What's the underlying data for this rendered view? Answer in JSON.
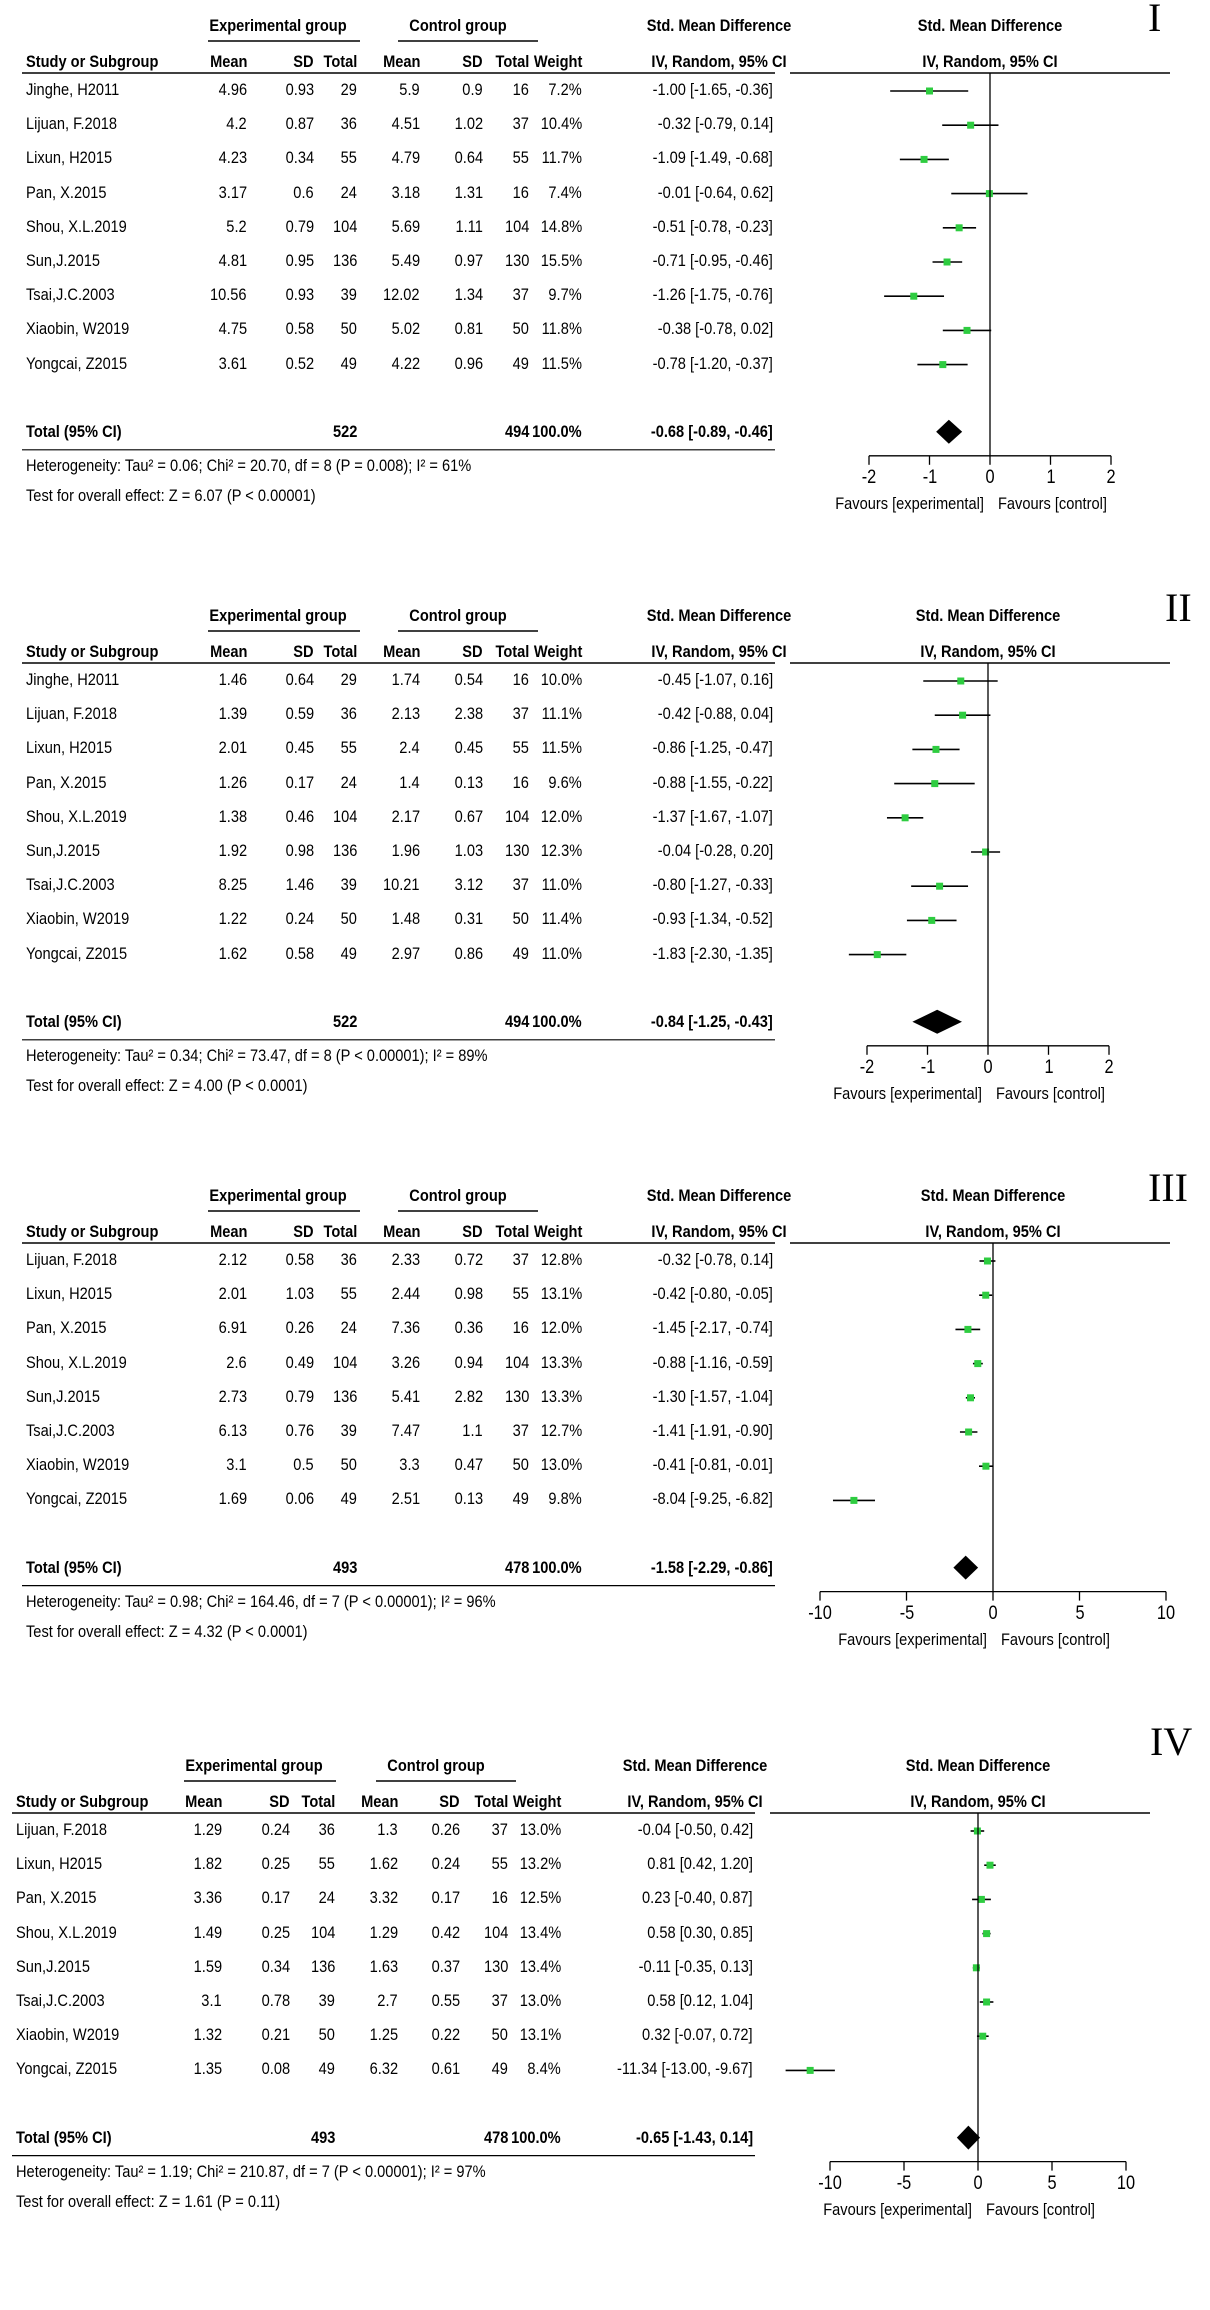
{
  "common": {
    "study_header": "Study or Subgroup",
    "exp_group": "Experimental group",
    "ctrl_group": "Control group",
    "mean": "Mean",
    "sd": "SD",
    "total": "Total",
    "weight": "Weight",
    "effect_title": "Std. Mean Difference",
    "effect_sub": "IV, Random, 95% CI",
    "total_label": "Total (95% CI)",
    "favours_left": "Favours [experimental]",
    "favours_right": "Favours [control]"
  },
  "chart_data": [
    {
      "type": "forest",
      "panel_label": "I",
      "x_ticks": [
        "-2",
        "-1",
        "0",
        "1",
        "2"
      ],
      "xlim": [
        -2,
        2
      ],
      "rows": [
        {
          "study": "Jinghe, H2011",
          "exp_mean": "4.96",
          "exp_sd": "0.93",
          "exp_total": "29",
          "ctrl_mean": "5.9",
          "ctrl_sd": "0.9",
          "ctrl_total": "16",
          "weight": "7.2%",
          "ci_text": "-1.00 [-1.65, -0.36]",
          "est": -1.0,
          "lo": -1.65,
          "hi": -0.36
        },
        {
          "study": "Lijuan, F.2018",
          "exp_mean": "4.2",
          "exp_sd": "0.87",
          "exp_total": "36",
          "ctrl_mean": "4.51",
          "ctrl_sd": "1.02",
          "ctrl_total": "37",
          "weight": "10.4%",
          "ci_text": "-0.32 [-0.79, 0.14]",
          "est": -0.32,
          "lo": -0.79,
          "hi": 0.14
        },
        {
          "study": "Lixun, H2015",
          "exp_mean": "4.23",
          "exp_sd": "0.34",
          "exp_total": "55",
          "ctrl_mean": "4.79",
          "ctrl_sd": "0.64",
          "ctrl_total": "55",
          "weight": "11.7%",
          "ci_text": "-1.09 [-1.49, -0.68]",
          "est": -1.09,
          "lo": -1.49,
          "hi": -0.68
        },
        {
          "study": "Pan, X.2015",
          "exp_mean": "3.17",
          "exp_sd": "0.6",
          "exp_total": "24",
          "ctrl_mean": "3.18",
          "ctrl_sd": "1.31",
          "ctrl_total": "16",
          "weight": "7.4%",
          "ci_text": "-0.01 [-0.64, 0.62]",
          "est": -0.01,
          "lo": -0.64,
          "hi": 0.62
        },
        {
          "study": "Shou, X.L.2019",
          "exp_mean": "5.2",
          "exp_sd": "0.79",
          "exp_total": "104",
          "ctrl_mean": "5.69",
          "ctrl_sd": "1.11",
          "ctrl_total": "104",
          "weight": "14.8%",
          "ci_text": "-0.51 [-0.78, -0.23]",
          "est": -0.51,
          "lo": -0.78,
          "hi": -0.23
        },
        {
          "study": "Sun,J.2015",
          "exp_mean": "4.81",
          "exp_sd": "0.95",
          "exp_total": "136",
          "ctrl_mean": "5.49",
          "ctrl_sd": "0.97",
          "ctrl_total": "130",
          "weight": "15.5%",
          "ci_text": "-0.71 [-0.95, -0.46]",
          "est": -0.71,
          "lo": -0.95,
          "hi": -0.46
        },
        {
          "study": "Tsai,J.C.2003",
          "exp_mean": "10.56",
          "exp_sd": "0.93",
          "exp_total": "39",
          "ctrl_mean": "12.02",
          "ctrl_sd": "1.34",
          "ctrl_total": "37",
          "weight": "9.7%",
          "ci_text": "-1.26 [-1.75, -0.76]",
          "est": -1.26,
          "lo": -1.75,
          "hi": -0.76
        },
        {
          "study": "Xiaobin, W2019",
          "exp_mean": "4.75",
          "exp_sd": "0.58",
          "exp_total": "50",
          "ctrl_mean": "5.02",
          "ctrl_sd": "0.81",
          "ctrl_total": "50",
          "weight": "11.8%",
          "ci_text": "-0.38 [-0.78, 0.02]",
          "est": -0.38,
          "lo": -0.78,
          "hi": 0.02
        },
        {
          "study": "Yongcai, Z2015",
          "exp_mean": "3.61",
          "exp_sd": "0.52",
          "exp_total": "49",
          "ctrl_mean": "4.22",
          "ctrl_sd": "0.96",
          "ctrl_total": "49",
          "weight": "11.5%",
          "ci_text": "-0.78 [-1.20, -0.37]",
          "est": -0.78,
          "lo": -1.2,
          "hi": -0.37
        }
      ],
      "total": {
        "exp_total": "522",
        "ctrl_total": "494",
        "weight": "100.0%",
        "ci_text": "-0.68 [-0.89, -0.46]",
        "est": -0.68,
        "lo": -0.89,
        "hi": -0.46
      },
      "heterogeneity": "Heterogeneity: Tau² = 0.06; Chi² = 20.70, df = 8 (P = 0.008); I² = 61%",
      "overall_effect": "Test for overall effect: Z = 6.07 (P < 0.00001)"
    },
    {
      "type": "forest",
      "panel_label": "II",
      "x_ticks": [
        "-2",
        "-1",
        "0",
        "1",
        "2"
      ],
      "xlim": [
        -2,
        2
      ],
      "rows": [
        {
          "study": "Jinghe, H2011",
          "exp_mean": "1.46",
          "exp_sd": "0.64",
          "exp_total": "29",
          "ctrl_mean": "1.74",
          "ctrl_sd": "0.54",
          "ctrl_total": "16",
          "weight": "10.0%",
          "ci_text": "-0.45 [-1.07, 0.16]",
          "est": -0.45,
          "lo": -1.07,
          "hi": 0.16
        },
        {
          "study": "Lijuan, F.2018",
          "exp_mean": "1.39",
          "exp_sd": "0.59",
          "exp_total": "36",
          "ctrl_mean": "2.13",
          "ctrl_sd": "2.38",
          "ctrl_total": "37",
          "weight": "11.1%",
          "ci_text": "-0.42 [-0.88, 0.04]",
          "est": -0.42,
          "lo": -0.88,
          "hi": 0.04
        },
        {
          "study": "Lixun, H2015",
          "exp_mean": "2.01",
          "exp_sd": "0.45",
          "exp_total": "55",
          "ctrl_mean": "2.4",
          "ctrl_sd": "0.45",
          "ctrl_total": "55",
          "weight": "11.5%",
          "ci_text": "-0.86 [-1.25, -0.47]",
          "est": -0.86,
          "lo": -1.25,
          "hi": -0.47
        },
        {
          "study": "Pan, X.2015",
          "exp_mean": "1.26",
          "exp_sd": "0.17",
          "exp_total": "24",
          "ctrl_mean": "1.4",
          "ctrl_sd": "0.13",
          "ctrl_total": "16",
          "weight": "9.6%",
          "ci_text": "-0.88 [-1.55, -0.22]",
          "est": -0.88,
          "lo": -1.55,
          "hi": -0.22
        },
        {
          "study": "Shou, X.L.2019",
          "exp_mean": "1.38",
          "exp_sd": "0.46",
          "exp_total": "104",
          "ctrl_mean": "2.17",
          "ctrl_sd": "0.67",
          "ctrl_total": "104",
          "weight": "12.0%",
          "ci_text": "-1.37 [-1.67, -1.07]",
          "est": -1.37,
          "lo": -1.67,
          "hi": -1.07
        },
        {
          "study": "Sun,J.2015",
          "exp_mean": "1.92",
          "exp_sd": "0.98",
          "exp_total": "136",
          "ctrl_mean": "1.96",
          "ctrl_sd": "1.03",
          "ctrl_total": "130",
          "weight": "12.3%",
          "ci_text": "-0.04 [-0.28, 0.20]",
          "est": -0.04,
          "lo": -0.28,
          "hi": 0.2
        },
        {
          "study": "Tsai,J.C.2003",
          "exp_mean": "8.25",
          "exp_sd": "1.46",
          "exp_total": "39",
          "ctrl_mean": "10.21",
          "ctrl_sd": "3.12",
          "ctrl_total": "37",
          "weight": "11.0%",
          "ci_text": "-0.80 [-1.27, -0.33]",
          "est": -0.8,
          "lo": -1.27,
          "hi": -0.33
        },
        {
          "study": "Xiaobin, W2019",
          "exp_mean": "1.22",
          "exp_sd": "0.24",
          "exp_total": "50",
          "ctrl_mean": "1.48",
          "ctrl_sd": "0.31",
          "ctrl_total": "50",
          "weight": "11.4%",
          "ci_text": "-0.93 [-1.34, -0.52]",
          "est": -0.93,
          "lo": -1.34,
          "hi": -0.52
        },
        {
          "study": "Yongcai, Z2015",
          "exp_mean": "1.62",
          "exp_sd": "0.58",
          "exp_total": "49",
          "ctrl_mean": "2.97",
          "ctrl_sd": "0.86",
          "ctrl_total": "49",
          "weight": "11.0%",
          "ci_text": "-1.83 [-2.30, -1.35]",
          "est": -1.83,
          "lo": -2.3,
          "hi": -1.35
        }
      ],
      "total": {
        "exp_total": "522",
        "ctrl_total": "494",
        "weight": "100.0%",
        "ci_text": "-0.84 [-1.25, -0.43]",
        "est": -0.84,
        "lo": -1.25,
        "hi": -0.43
      },
      "heterogeneity": "Heterogeneity: Tau² = 0.34; Chi² = 73.47, df = 8 (P < 0.00001); I² = 89%",
      "overall_effect": "Test for overall effect: Z = 4.00 (P < 0.0001)"
    },
    {
      "type": "forest",
      "panel_label": "III",
      "x_ticks": [
        "-10",
        "-5",
        "0",
        "5",
        "10"
      ],
      "xlim": [
        -10,
        10
      ],
      "rows": [
        {
          "study": "Lijuan, F.2018",
          "exp_mean": "2.12",
          "exp_sd": "0.58",
          "exp_total": "36",
          "ctrl_mean": "2.33",
          "ctrl_sd": "0.72",
          "ctrl_total": "37",
          "weight": "12.8%",
          "ci_text": "-0.32 [-0.78, 0.14]",
          "est": -0.32,
          "lo": -0.78,
          "hi": 0.14
        },
        {
          "study": "Lixun, H2015",
          "exp_mean": "2.01",
          "exp_sd": "1.03",
          "exp_total": "55",
          "ctrl_mean": "2.44",
          "ctrl_sd": "0.98",
          "ctrl_total": "55",
          "weight": "13.1%",
          "ci_text": "-0.42 [-0.80, -0.05]",
          "est": -0.42,
          "lo": -0.8,
          "hi": -0.05
        },
        {
          "study": "Pan, X.2015",
          "exp_mean": "6.91",
          "exp_sd": "0.26",
          "exp_total": "24",
          "ctrl_mean": "7.36",
          "ctrl_sd": "0.36",
          "ctrl_total": "16",
          "weight": "12.0%",
          "ci_text": "-1.45 [-2.17, -0.74]",
          "est": -1.45,
          "lo": -2.17,
          "hi": -0.74
        },
        {
          "study": "Shou, X.L.2019",
          "exp_mean": "2.6",
          "exp_sd": "0.49",
          "exp_total": "104",
          "ctrl_mean": "3.26",
          "ctrl_sd": "0.94",
          "ctrl_total": "104",
          "weight": "13.3%",
          "ci_text": "-0.88 [-1.16, -0.59]",
          "est": -0.88,
          "lo": -1.16,
          "hi": -0.59
        },
        {
          "study": "Sun,J.2015",
          "exp_mean": "2.73",
          "exp_sd": "0.79",
          "exp_total": "136",
          "ctrl_mean": "5.41",
          "ctrl_sd": "2.82",
          "ctrl_total": "130",
          "weight": "13.3%",
          "ci_text": "-1.30 [-1.57, -1.04]",
          "est": -1.3,
          "lo": -1.57,
          "hi": -1.04
        },
        {
          "study": "Tsai,J.C.2003",
          "exp_mean": "6.13",
          "exp_sd": "0.76",
          "exp_total": "39",
          "ctrl_mean": "7.47",
          "ctrl_sd": "1.1",
          "ctrl_total": "37",
          "weight": "12.7%",
          "ci_text": "-1.41 [-1.91, -0.90]",
          "est": -1.41,
          "lo": -1.91,
          "hi": -0.9
        },
        {
          "study": "Xiaobin, W2019",
          "exp_mean": "3.1",
          "exp_sd": "0.5",
          "exp_total": "50",
          "ctrl_mean": "3.3",
          "ctrl_sd": "0.47",
          "ctrl_total": "50",
          "weight": "13.0%",
          "ci_text": "-0.41 [-0.81, -0.01]",
          "est": -0.41,
          "lo": -0.81,
          "hi": -0.01
        },
        {
          "study": "Yongcai, Z2015",
          "exp_mean": "1.69",
          "exp_sd": "0.06",
          "exp_total": "49",
          "ctrl_mean": "2.51",
          "ctrl_sd": "0.13",
          "ctrl_total": "49",
          "weight": "9.8%",
          "ci_text": "-8.04 [-9.25, -6.82]",
          "est": -8.04,
          "lo": -9.25,
          "hi": -6.82
        }
      ],
      "total": {
        "exp_total": "493",
        "ctrl_total": "478",
        "weight": "100.0%",
        "ci_text": "-1.58 [-2.29, -0.86]",
        "est": -1.58,
        "lo": -2.29,
        "hi": -0.86
      },
      "heterogeneity": "Heterogeneity: Tau² = 0.98; Chi² = 164.46, df = 7 (P < 0.00001); I² = 96%",
      "overall_effect": "Test for overall effect: Z = 4.32 (P < 0.0001)"
    },
    {
      "type": "forest",
      "panel_label": "IV",
      "x_ticks": [
        "-10",
        "-5",
        "0",
        "5",
        "10"
      ],
      "xlim": [
        -10,
        10
      ],
      "rows": [
        {
          "study": "Lijuan, F.2018",
          "exp_mean": "1.29",
          "exp_sd": "0.24",
          "exp_total": "36",
          "ctrl_mean": "1.3",
          "ctrl_sd": "0.26",
          "ctrl_total": "37",
          "weight": "13.0%",
          "ci_text": "-0.04 [-0.50, 0.42]",
          "est": -0.04,
          "lo": -0.5,
          "hi": 0.42
        },
        {
          "study": "Lixun, H2015",
          "exp_mean": "1.82",
          "exp_sd": "0.25",
          "exp_total": "55",
          "ctrl_mean": "1.62",
          "ctrl_sd": "0.24",
          "ctrl_total": "55",
          "weight": "13.2%",
          "ci_text": "0.81 [0.42, 1.20]",
          "est": 0.81,
          "lo": 0.42,
          "hi": 1.2
        },
        {
          "study": "Pan, X.2015",
          "exp_mean": "3.36",
          "exp_sd": "0.17",
          "exp_total": "24",
          "ctrl_mean": "3.32",
          "ctrl_sd": "0.17",
          "ctrl_total": "16",
          "weight": "12.5%",
          "ci_text": "0.23 [-0.40, 0.87]",
          "est": 0.23,
          "lo": -0.4,
          "hi": 0.87
        },
        {
          "study": "Shou, X.L.2019",
          "exp_mean": "1.49",
          "exp_sd": "0.25",
          "exp_total": "104",
          "ctrl_mean": "1.29",
          "ctrl_sd": "0.42",
          "ctrl_total": "104",
          "weight": "13.4%",
          "ci_text": "0.58 [0.30, 0.85]",
          "est": 0.58,
          "lo": 0.3,
          "hi": 0.85
        },
        {
          "study": "Sun,J.2015",
          "exp_mean": "1.59",
          "exp_sd": "0.34",
          "exp_total": "136",
          "ctrl_mean": "1.63",
          "ctrl_sd": "0.37",
          "ctrl_total": "130",
          "weight": "13.4%",
          "ci_text": "-0.11 [-0.35, 0.13]",
          "est": -0.11,
          "lo": -0.35,
          "hi": 0.13
        },
        {
          "study": "Tsai,J.C.2003",
          "exp_mean": "3.1",
          "exp_sd": "0.78",
          "exp_total": "39",
          "ctrl_mean": "2.7",
          "ctrl_sd": "0.55",
          "ctrl_total": "37",
          "weight": "13.0%",
          "ci_text": "0.58 [0.12, 1.04]",
          "est": 0.58,
          "lo": 0.12,
          "hi": 1.04
        },
        {
          "study": "Xiaobin, W2019",
          "exp_mean": "1.32",
          "exp_sd": "0.21",
          "exp_total": "50",
          "ctrl_mean": "1.25",
          "ctrl_sd": "0.22",
          "ctrl_total": "50",
          "weight": "13.1%",
          "ci_text": "0.32 [-0.07, 0.72]",
          "est": 0.32,
          "lo": -0.07,
          "hi": 0.72
        },
        {
          "study": "Yongcai, Z2015",
          "exp_mean": "1.35",
          "exp_sd": "0.08",
          "exp_total": "49",
          "ctrl_mean": "6.32",
          "ctrl_sd": "0.61",
          "ctrl_total": "49",
          "weight": "8.4%",
          "ci_text": "-11.34 [-13.00, -9.67]",
          "est": -11.34,
          "lo": -13.0,
          "hi": -9.67
        }
      ],
      "total": {
        "exp_total": "493",
        "ctrl_total": "478",
        "weight": "100.0%",
        "ci_text": "-0.65 [-1.43, 0.14]",
        "est": -0.65,
        "lo": -1.43,
        "hi": 0.14
      },
      "heterogeneity": "Heterogeneity: Tau² = 1.19; Chi² = 210.87, df = 7 (P < 0.00001); I² = 97%",
      "overall_effect": "Test for overall effect: Z = 1.61 (P = 0.11)"
    }
  ],
  "colors": {
    "square": "#2ecc40",
    "line": "#000000",
    "diamond": "#000000"
  }
}
